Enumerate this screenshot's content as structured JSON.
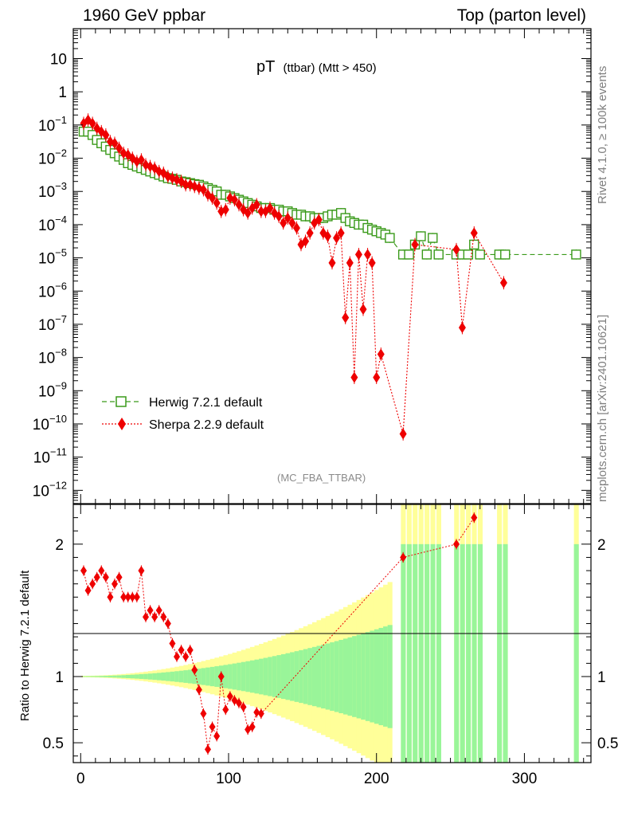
{
  "header": {
    "left": "1960 GeV ppbar",
    "right": "Top (parton level)"
  },
  "side_labels": {
    "rivet": "Rivet 4.1.0, ≥ 100k events",
    "mcplots": "mcplots.cern.ch [arXiv:2401.10621]"
  },
  "chart_data": {
    "type": "line",
    "title_main": "pT",
    "title_sub": "(ttbar) (Mtt > 450)",
    "analysis_tag": "(MC_FBA_TTBAR)",
    "xlabel": "",
    "ylabel": "",
    "ratio_ylabel": "Ratio to Herwig 7.2.1 default",
    "xlim": [
      -5,
      345
    ],
    "ylim_log10": [
      -12.4,
      1.9
    ],
    "ratio_ylim": [
      0.35,
      2.3
    ],
    "x_ticks": [
      0,
      100,
      200,
      300
    ],
    "x_tick_labels": [
      "0",
      "100",
      "200",
      "300"
    ],
    "y_ticks": [
      {
        "label": "10",
        "exp": null,
        "value_log10": 1
      },
      {
        "label": "1",
        "exp": null,
        "value_log10": 0
      },
      {
        "label": "10",
        "exp": "−1",
        "value_log10": -1
      },
      {
        "label": "10",
        "exp": "−2",
        "value_log10": -2
      },
      {
        "label": "10",
        "exp": "−3",
        "value_log10": -3
      },
      {
        "label": "10",
        "exp": "−4",
        "value_log10": -4
      },
      {
        "label": "10",
        "exp": "−5",
        "value_log10": -5
      },
      {
        "label": "10",
        "exp": "−6",
        "value_log10": -6
      },
      {
        "label": "10",
        "exp": "−7",
        "value_log10": -7
      },
      {
        "label": "10",
        "exp": "−8",
        "value_log10": -8
      },
      {
        "label": "10",
        "exp": "−9",
        "value_log10": -9
      },
      {
        "label": "10",
        "exp": "−10",
        "value_log10": -10
      },
      {
        "label": "10",
        "exp": "−11",
        "value_log10": -11
      },
      {
        "label": "10",
        "exp": "−12",
        "value_log10": -12
      }
    ],
    "ratio_ticks": [
      {
        "label": "2",
        "value": 2
      },
      {
        "label": "1",
        "value": 1
      },
      {
        "label": "0.5",
        "value": 0.5
      }
    ],
    "legend": [
      {
        "label": "Herwig 7.2.1 default",
        "color": "#3a9a1a",
        "marker": "open-square",
        "dash": "dashed"
      },
      {
        "label": "Sherpa 2.2.9 default",
        "color": "#ee0000",
        "marker": "diamond",
        "dash": "dotted"
      }
    ],
    "series": [
      {
        "name": "Herwig 7.2.1 default",
        "color": "#3a9a1a",
        "x_log10y": [
          [
            2,
            -1.2
          ],
          [
            5,
            -1.2
          ],
          [
            8,
            -1.3
          ],
          [
            11,
            -1.45
          ],
          [
            14,
            -1.55
          ],
          [
            17,
            -1.65
          ],
          [
            20,
            -1.75
          ],
          [
            23,
            -1.85
          ],
          [
            26,
            -1.95
          ],
          [
            29,
            -2.05
          ],
          [
            32,
            -2.15
          ],
          [
            35,
            -2.2
          ],
          [
            38,
            -2.25
          ],
          [
            41,
            -2.3
          ],
          [
            44,
            -2.35
          ],
          [
            47,
            -2.4
          ],
          [
            50,
            -2.45
          ],
          [
            53,
            -2.5
          ],
          [
            56,
            -2.55
          ],
          [
            59,
            -2.6
          ],
          [
            62,
            -2.62
          ],
          [
            65,
            -2.65
          ],
          [
            68,
            -2.7
          ],
          [
            71,
            -2.72
          ],
          [
            74,
            -2.75
          ],
          [
            77,
            -2.78
          ],
          [
            80,
            -2.8
          ],
          [
            83,
            -2.85
          ],
          [
            86,
            -2.9
          ],
          [
            89,
            -2.95
          ],
          [
            92,
            -3.0
          ],
          [
            95,
            -3.1
          ],
          [
            98,
            -3.1
          ],
          [
            101,
            -3.15
          ],
          [
            104,
            -3.2
          ],
          [
            107,
            -3.25
          ],
          [
            110,
            -3.3
          ],
          [
            113,
            -3.35
          ],
          [
            116,
            -3.4
          ],
          [
            119,
            -3.45
          ],
          [
            122,
            -3.5
          ],
          [
            125,
            -3.5
          ],
          [
            128,
            -3.5
          ],
          [
            131,
            -3.55
          ],
          [
            134,
            -3.55
          ],
          [
            137,
            -3.6
          ],
          [
            140,
            -3.6
          ],
          [
            143,
            -3.65
          ],
          [
            146,
            -3.7
          ],
          [
            149,
            -3.7
          ],
          [
            152,
            -3.75
          ],
          [
            155,
            -3.75
          ],
          [
            158,
            -3.8
          ],
          [
            161,
            -3.8
          ],
          [
            164,
            -3.8
          ],
          [
            167,
            -3.75
          ],
          [
            170,
            -3.7
          ],
          [
            173,
            -3.7
          ],
          [
            176,
            -3.65
          ],
          [
            179,
            -3.8
          ],
          [
            182,
            -3.9
          ],
          [
            185,
            -3.95
          ],
          [
            188,
            -4.0
          ],
          [
            191,
            -4.0
          ],
          [
            194,
            -4.1
          ],
          [
            197,
            -4.15
          ],
          [
            200,
            -4.2
          ],
          [
            203,
            -4.25
          ],
          [
            206,
            -4.3
          ],
          [
            209,
            -4.4
          ],
          [
            218,
            -4.9
          ],
          [
            222,
            -4.9
          ],
          [
            226,
            -4.6
          ],
          [
            230,
            -4.35
          ],
          [
            234,
            -4.9
          ],
          [
            238,
            -4.4
          ],
          [
            242,
            -4.9
          ],
          [
            254,
            -4.9
          ],
          [
            258,
            -4.9
          ],
          [
            262,
            -4.9
          ],
          [
            266,
            -4.6
          ],
          [
            270,
            -4.9
          ],
          [
            283,
            -4.9
          ],
          [
            287,
            -4.9
          ],
          [
            335,
            -4.9
          ]
        ],
        "ratio_band_note": "MC uncertainty bands around ratio 1"
      },
      {
        "name": "Sherpa 2.2.9 default",
        "color": "#ee0000",
        "x_log10y": [
          [
            2,
            -0.95
          ],
          [
            5,
            -0.85
          ],
          [
            8,
            -0.95
          ],
          [
            11,
            -1.1
          ],
          [
            14,
            -1.2
          ],
          [
            17,
            -1.3
          ],
          [
            20,
            -1.5
          ],
          [
            23,
            -1.55
          ],
          [
            26,
            -1.7
          ],
          [
            29,
            -1.85
          ],
          [
            32,
            -1.9
          ],
          [
            35,
            -2.0
          ],
          [
            38,
            -2.1
          ],
          [
            41,
            -2.05
          ],
          [
            44,
            -2.2
          ],
          [
            47,
            -2.25
          ],
          [
            50,
            -2.3
          ],
          [
            53,
            -2.4
          ],
          [
            56,
            -2.45
          ],
          [
            59,
            -2.55
          ],
          [
            62,
            -2.6
          ],
          [
            65,
            -2.65
          ],
          [
            68,
            -2.7
          ],
          [
            71,
            -2.8
          ],
          [
            74,
            -2.8
          ],
          [
            77,
            -2.85
          ],
          [
            80,
            -2.9
          ],
          [
            83,
            -2.95
          ],
          [
            86,
            -3.1
          ],
          [
            89,
            -3.2
          ],
          [
            92,
            -3.35
          ],
          [
            95,
            -3.6
          ],
          [
            98,
            -3.55
          ],
          [
            101,
            -3.2
          ],
          [
            104,
            -3.25
          ],
          [
            107,
            -3.4
          ],
          [
            110,
            -3.55
          ],
          [
            113,
            -3.65
          ],
          [
            116,
            -3.5
          ],
          [
            119,
            -3.4
          ],
          [
            122,
            -3.6
          ],
          [
            125,
            -3.6
          ],
          [
            128,
            -3.5
          ],
          [
            131,
            -3.65
          ],
          [
            134,
            -3.75
          ],
          [
            137,
            -3.95
          ],
          [
            140,
            -3.8
          ],
          [
            143,
            -3.95
          ],
          [
            146,
            -4.1
          ],
          [
            149,
            -4.6
          ],
          [
            152,
            -4.5
          ],
          [
            155,
            -4.25
          ],
          [
            158,
            -3.95
          ],
          [
            161,
            -3.85
          ],
          [
            164,
            -4.25
          ],
          [
            167,
            -4.35
          ],
          [
            170,
            -5.15
          ],
          [
            173,
            -4.4
          ],
          [
            176,
            -4.25
          ],
          [
            179,
            -6.8
          ],
          [
            182,
            -5.15
          ],
          [
            185,
            -8.6
          ],
          [
            188,
            -4.9
          ],
          [
            191,
            -6.55
          ],
          [
            194,
            -4.9
          ],
          [
            197,
            -5.15
          ],
          [
            200,
            -8.6
          ],
          [
            203,
            -7.9
          ],
          [
            218,
            -10.3
          ],
          [
            226,
            -4.6
          ],
          [
            254,
            -4.75
          ],
          [
            258,
            -7.1
          ],
          [
            266,
            -4.25
          ],
          [
            286,
            -5.75
          ]
        ],
        "ratio_points": [
          [
            2,
            1.8
          ],
          [
            5,
            1.65
          ],
          [
            8,
            1.7
          ],
          [
            11,
            1.75
          ],
          [
            14,
            1.8
          ],
          [
            17,
            1.75
          ],
          [
            20,
            1.6
          ],
          [
            23,
            1.7
          ],
          [
            26,
            1.75
          ],
          [
            29,
            1.6
          ],
          [
            32,
            1.6
          ],
          [
            35,
            1.6
          ],
          [
            38,
            1.6
          ],
          [
            41,
            1.8
          ],
          [
            44,
            1.45
          ],
          [
            47,
            1.5
          ],
          [
            50,
            1.45
          ],
          [
            53,
            1.5
          ],
          [
            56,
            1.45
          ],
          [
            59,
            1.4
          ],
          [
            62,
            1.25
          ],
          [
            65,
            1.15
          ],
          [
            68,
            1.2
          ],
          [
            71,
            1.15
          ],
          [
            74,
            1.2
          ],
          [
            77,
            1.05
          ],
          [
            80,
            0.9
          ],
          [
            83,
            0.72
          ],
          [
            86,
            0.45
          ],
          [
            89,
            0.62
          ],
          [
            92,
            0.55
          ],
          [
            95,
            1.0
          ],
          [
            98,
            0.75
          ],
          [
            101,
            0.85
          ],
          [
            104,
            0.82
          ],
          [
            107,
            0.8
          ],
          [
            110,
            0.77
          ],
          [
            113,
            0.6
          ],
          [
            116,
            0.62
          ],
          [
            119,
            0.73
          ],
          [
            122,
            0.72
          ],
          [
            218,
            1.9
          ],
          [
            254,
            2.0
          ],
          [
            266,
            2.2
          ]
        ]
      }
    ]
  }
}
